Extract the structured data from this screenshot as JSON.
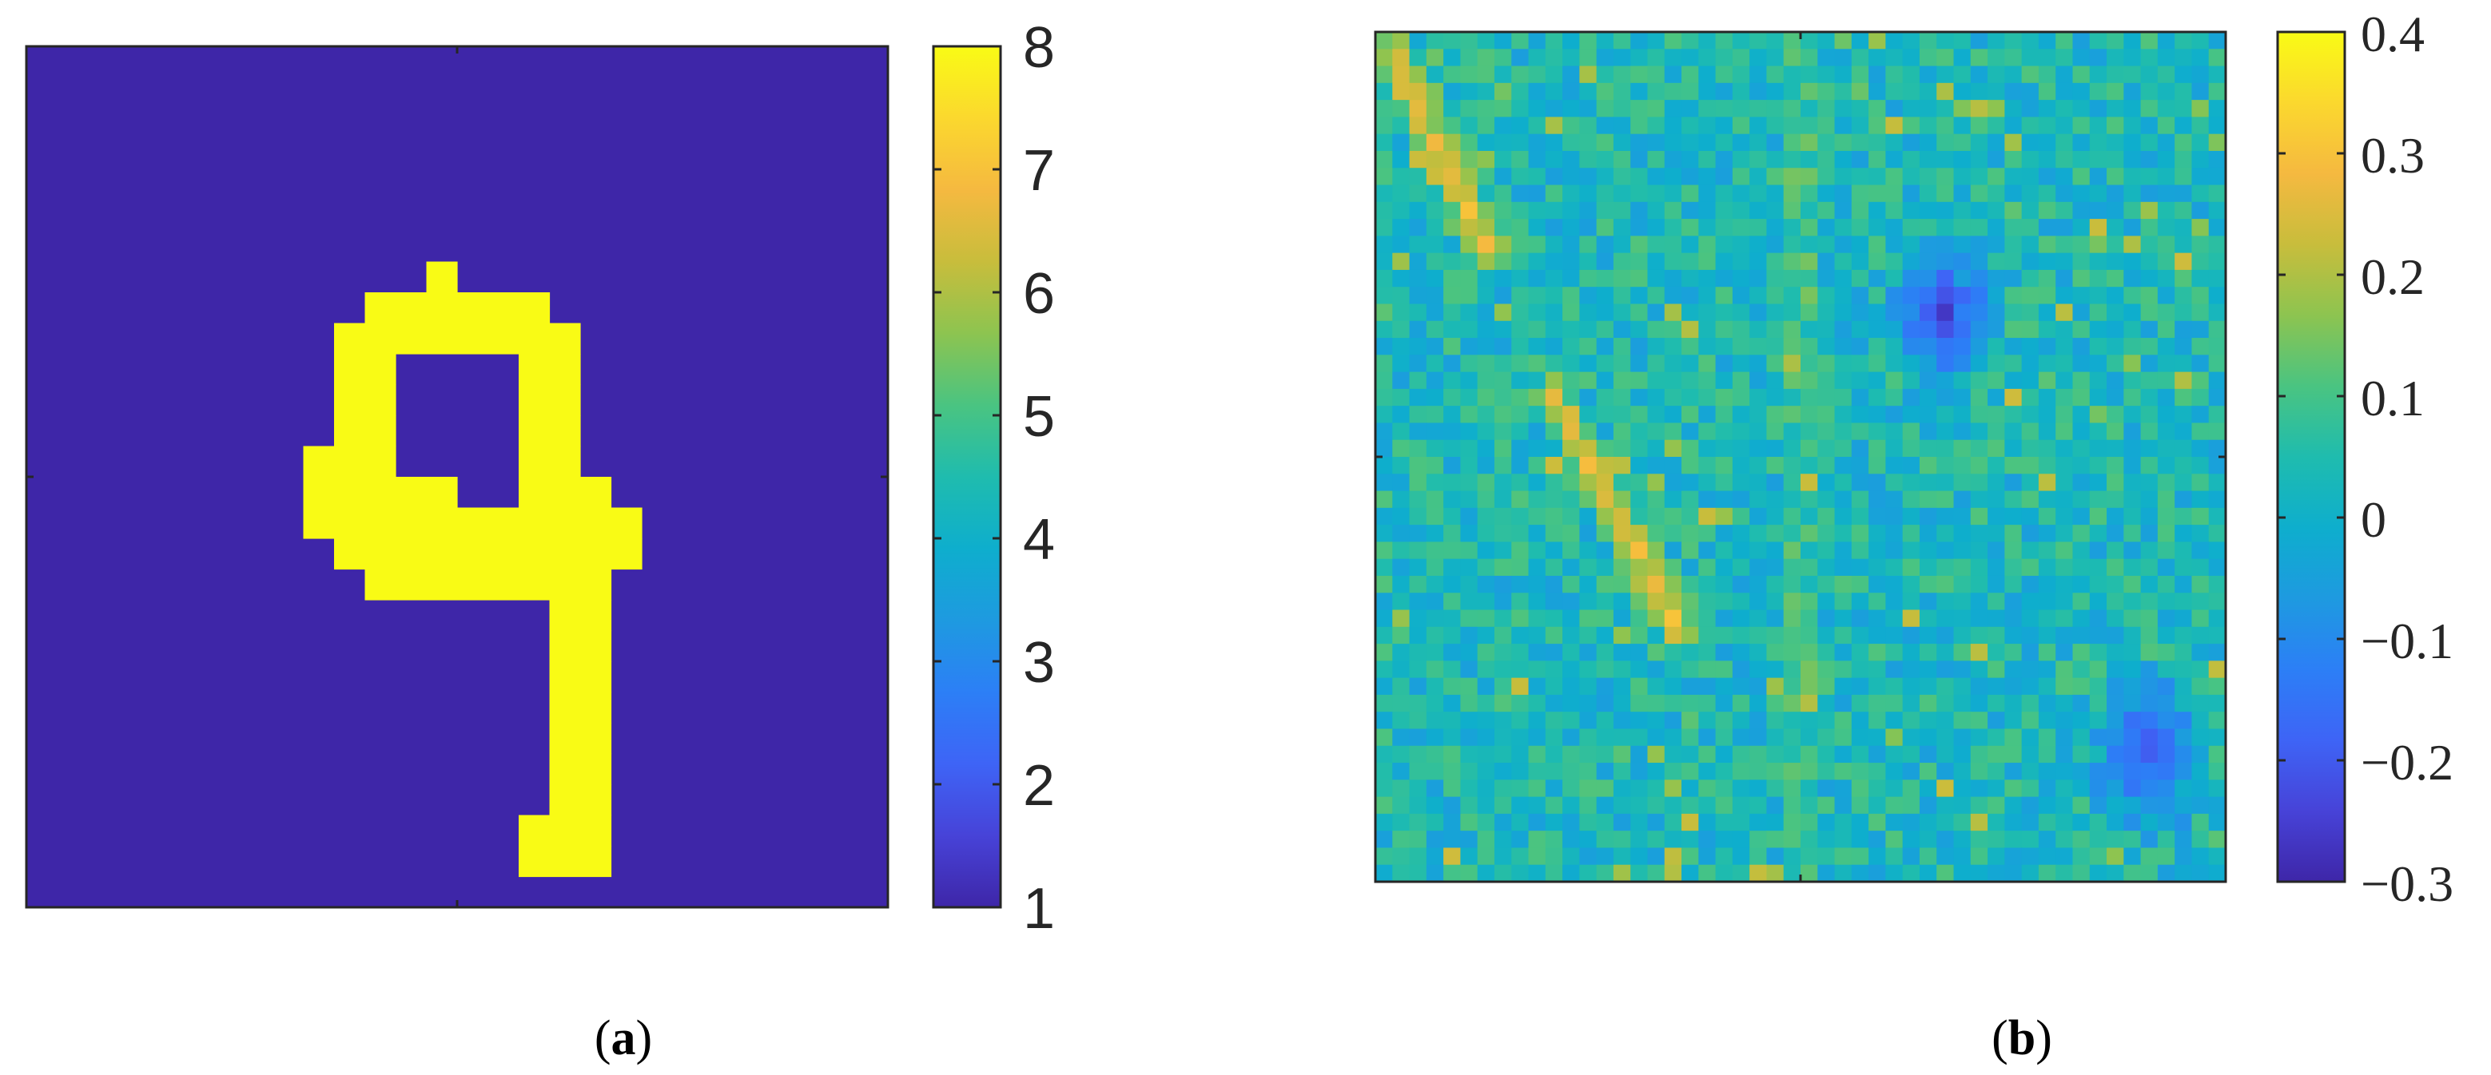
{
  "colormap": [
    "#3e26a8",
    "#4743d8",
    "#3e64f6",
    "#2c7ff6",
    "#1e9ae0",
    "#0eaecd",
    "#1fbcae",
    "#4ac481",
    "#8dc450",
    "#c8bd3c",
    "#f5b940",
    "#fbd82e",
    "#f9fb15"
  ],
  "panels": [
    {
      "label_open": "(",
      "label_letter": "a",
      "label_close": ")"
    },
    {
      "label_open": "(",
      "label_letter": "b",
      "label_close": ")"
    }
  ],
  "chart_data": [
    {
      "type": "heatmap",
      "description_of_content": "",
      "grid_size": [
        28,
        28
      ],
      "clim": [
        1,
        8
      ],
      "colorbar_ticks": [
        "1",
        "2",
        "3",
        "4",
        "5",
        "6",
        "7",
        "8"
      ],
      "colorbar_tick_values": [
        1,
        2,
        3,
        4,
        5,
        6,
        7,
        8
      ],
      "background_value": 1,
      "foreground_value": 8,
      "foreground_rows": [
        [],
        [],
        [],
        [],
        [],
        [],
        [],
        [
          [
            13,
            13
          ]
        ],
        [
          [
            11,
            16
          ]
        ],
        [
          [
            10,
            17
          ]
        ],
        [
          [
            10,
            11
          ],
          [
            16,
            17
          ]
        ],
        [
          [
            10,
            11
          ],
          [
            16,
            17
          ]
        ],
        [
          [
            10,
            11
          ],
          [
            16,
            17
          ]
        ],
        [
          [
            9,
            11
          ],
          [
            16,
            17
          ]
        ],
        [
          [
            9,
            13
          ],
          [
            16,
            18
          ]
        ],
        [
          [
            9,
            19
          ]
        ],
        [
          [
            10,
            19
          ]
        ],
        [
          [
            11,
            18
          ]
        ],
        [
          [
            17,
            18
          ]
        ],
        [
          [
            17,
            18
          ]
        ],
        [
          [
            17,
            18
          ]
        ],
        [
          [
            17,
            18
          ]
        ],
        [
          [
            17,
            18
          ]
        ],
        [
          [
            17,
            18
          ]
        ],
        [
          [
            17,
            18
          ]
        ],
        [
          [
            16,
            18
          ]
        ],
        [
          [
            16,
            18
          ]
        ],
        []
      ]
    },
    {
      "type": "heatmap",
      "grid_size": [
        50,
        50
      ],
      "clim": [
        -0.3,
        0.4
      ],
      "colorbar_ticks": [
        "0.4",
        "0.3",
        "0.2",
        "0.1",
        "0",
        "−0.1",
        "−0.2",
        "−0.3"
      ],
      "colorbar_tick_values": [
        0.4,
        0.3,
        0.2,
        0.1,
        0,
        -0.1,
        -0.2,
        -0.3
      ],
      "background_value": 0.03,
      "features": [
        {
          "shape": "line",
          "from": [
            0.5,
            1
          ],
          "to": [
            6,
            12
          ],
          "width": 1.8,
          "value": 0.28
        },
        {
          "shape": "line",
          "from": [
            10,
            21
          ],
          "to": [
            17.5,
            35
          ],
          "width": 1.6,
          "value": 0.3
        },
        {
          "shape": "blob",
          "center": [
            33,
            16
          ],
          "radius": [
            4,
            5
          ],
          "value": -0.24
        },
        {
          "shape": "blob",
          "center": [
            45,
            42
          ],
          "radius": [
            4,
            6
          ],
          "value": -0.22
        },
        {
          "shape": "line",
          "from": [
            24.5,
            0
          ],
          "to": [
            24.5,
            49
          ],
          "width": 0.7,
          "value": 0.24
        }
      ]
    }
  ]
}
